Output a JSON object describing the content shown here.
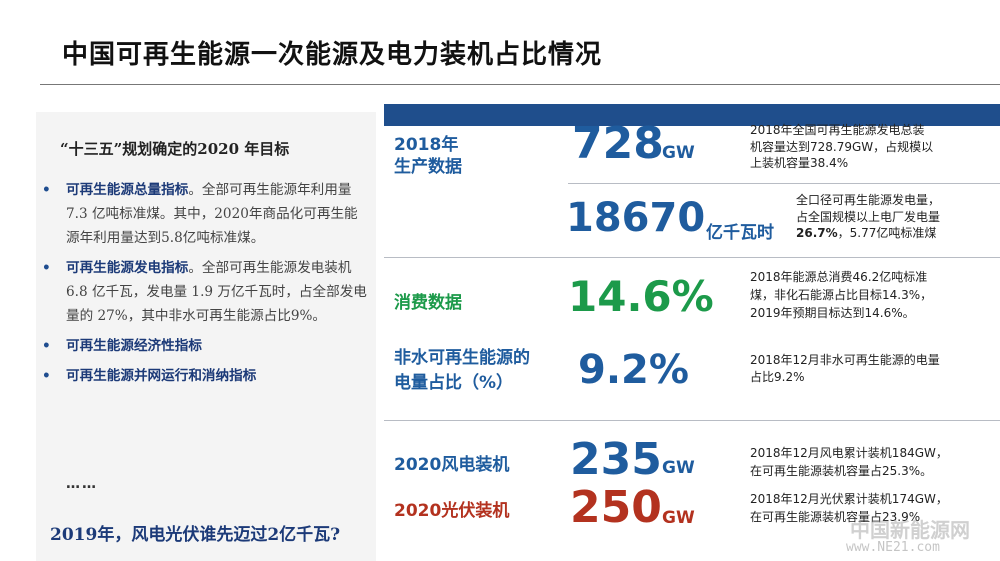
{
  "title": "中国可再生能源一次能源及电力装机占比情况",
  "left": {
    "subtitle": "“十三五”规划确定的2020 年目标",
    "bullets": [
      {
        "keyword": "可再生能源总量指标",
        "rest": "。全部可再生能源年利用量 7.3 亿吨标准煤。其中，2020年商品化可再生能源年利用量达到5.8亿吨标准煤。"
      },
      {
        "keyword": "可再生能源发电指标",
        "rest": "。全部可再生能源发电装机 6.8 亿千瓦，发电量 1.9 万亿千瓦时，占全部发电量的 27%，其中非水可再生能源占比9%。"
      },
      {
        "keyword": "可再生能源经济性指标",
        "rest": ""
      },
      {
        "keyword": "可再生能源并网运行和消纳指标",
        "rest": ""
      }
    ],
    "ellipsis": "……",
    "question": "2019年，风电光伏谁先迈过2亿千瓦?"
  },
  "right": {
    "production_label_1": "2018年",
    "production_label_2": "生产数据",
    "cap_value": "728",
    "cap_unit": "GW",
    "cap_desc_1": "2018年全国可再生能源发电总装",
    "cap_desc_2": "机容量达到728.79GW，占规模以",
    "cap_desc_3": "上装机容量38.4%",
    "gen_value": "18670",
    "gen_unit": "亿千瓦时",
    "gen_desc_1": "全口径可再生能源发电量，",
    "gen_desc_2": "占全国规模以上电厂发电量",
    "gen_desc_3a": "26.7%",
    "gen_desc_3b": "，5.77亿吨标准煤",
    "consume_label": "消费数据",
    "consume_value": "14.6%",
    "consume_desc_1": "2018年能源总消费46.2亿吨标准",
    "consume_desc_2": "煤，非化石能源占比目标14.3%，",
    "consume_desc_3": "2019年预期目标达到14.6%。",
    "nonhydro_label_1": "非水可再生能源的",
    "nonhydro_label_2": "电量占比（%）",
    "nonhydro_value": "9.2%",
    "nonhydro_desc_1": "2018年12月非水可再生能源的电量",
    "nonhydro_desc_2": "占比9.2%",
    "wind_label": "2020风电装机",
    "wind_value": "235",
    "wind_unit": "GW",
    "wind_desc_1": "2018年12月风电累计装机184GW，",
    "wind_desc_2": "在可再生能源装机容量占25.3%。",
    "pv_label": "2020光伏装机",
    "pv_value": "250",
    "pv_unit": "GW",
    "pv_desc_1": "2018年12月光伏累计装机174GW，",
    "pv_desc_2": "在可再生能源装机容量占23.9%"
  },
  "watermark": {
    "line1": "中国新能源网",
    "line2": "www.NE21.com"
  },
  "colors": {
    "blue": "#1f5c9e",
    "navy": "#1c3a78",
    "green": "#1c9a4a",
    "red": "#b3321f"
  }
}
